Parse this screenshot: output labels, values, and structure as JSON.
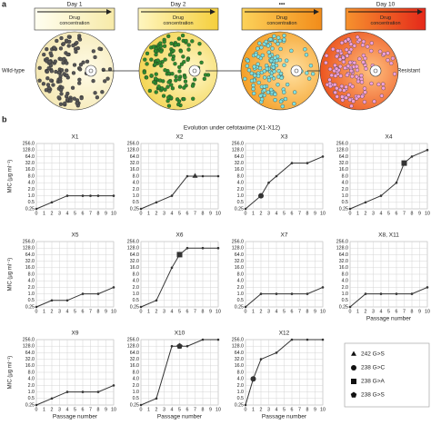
{
  "panel_a": {
    "label": "a",
    "steps": [
      {
        "day": "Day 1",
        "bar": "Drug concentration"
      },
      {
        "day": "Day 2",
        "bar": "Drug concentration"
      },
      {
        "day": "•••",
        "bar": "Drug concentration"
      },
      {
        "day": "Day 10",
        "bar": "Drug concentration"
      }
    ],
    "start_label": "Wild-type",
    "end_label": "Resistant"
  },
  "panel_b": {
    "label": "b",
    "title": "Evolution under cefotaxime (X1-X12)"
  },
  "legend": [
    {
      "shape": "triangle",
      "label": "242 G>S"
    },
    {
      "shape": "circle",
      "label": "238 G>C"
    },
    {
      "shape": "square",
      "label": "238 G>A"
    },
    {
      "shape": "pentagon",
      "label": "238 G>S"
    }
  ],
  "chart_data": [
    {
      "type": "line",
      "title": "X1",
      "ylabel": "MIC (μg ml⁻¹)",
      "x": [
        0,
        2,
        4,
        6,
        7,
        8,
        10
      ],
      "values": [
        0.25,
        0.5,
        1,
        1,
        1,
        1,
        1
      ],
      "xlim": [
        0,
        10
      ],
      "xticks": [
        0,
        1,
        2,
        3,
        4,
        5,
        6,
        7,
        8,
        9,
        10
      ],
      "ylim": [
        0.25,
        256
      ],
      "ylog": 2,
      "yticks": [
        0.25,
        0.5,
        {
          "value": 1,
          "label": "1.0"
        },
        {
          "value": 2,
          "label": "2.0"
        },
        {
          "value": 4,
          "label": "4.0"
        },
        {
          "value": 8,
          "label": "8.0"
        },
        {
          "value": 16,
          "label": "16.0"
        },
        {
          "value": 32,
          "label": "32.0"
        },
        {
          "value": 64,
          "label": "64.0"
        },
        {
          "value": 128,
          "label": "128.0"
        },
        {
          "value": 256,
          "label": "256.0"
        }
      ],
      "grid": true,
      "color": "#333333"
    },
    {
      "type": "line",
      "title": "X2",
      "x": [
        0,
        2,
        4,
        6,
        7,
        8,
        10
      ],
      "values": [
        0.25,
        0.5,
        1,
        8,
        8,
        8,
        8
      ],
      "markers": [
        null,
        null,
        null,
        null,
        "triangle",
        null,
        null
      ],
      "xlim": [
        0,
        10
      ],
      "xticks": [
        0,
        1,
        2,
        3,
        4,
        5,
        6,
        7,
        8,
        9,
        10
      ],
      "ylim": [
        0.25,
        256
      ],
      "ylog": 2,
      "yticks": [
        0.25,
        0.5,
        {
          "value": 1,
          "label": "1.0"
        },
        {
          "value": 2,
          "label": "2.0"
        },
        {
          "value": 4,
          "label": "4.0"
        },
        {
          "value": 8,
          "label": "8.0"
        },
        {
          "value": 16,
          "label": "16.0"
        },
        {
          "value": 32,
          "label": "32.0"
        },
        {
          "value": 64,
          "label": "64.0"
        },
        {
          "value": 128,
          "label": "128.0"
        },
        {
          "value": 256,
          "label": "256.0"
        }
      ],
      "grid": true,
      "color": "#333333"
    },
    {
      "type": "line",
      "title": "X3",
      "x": [
        0,
        2,
        3,
        4,
        6,
        8,
        10
      ],
      "values": [
        0.25,
        1,
        4,
        8,
        32,
        32,
        64
      ],
      "markers": [
        null,
        "circle",
        null,
        null,
        null,
        null,
        null
      ],
      "xlim": [
        0,
        10
      ],
      "xticks": [
        0,
        1,
        2,
        3,
        4,
        5,
        6,
        7,
        8,
        9,
        10
      ],
      "ylim": [
        0.25,
        256
      ],
      "ylog": 2,
      "yticks": [
        0.25,
        0.5,
        {
          "value": 1,
          "label": "1.0"
        },
        {
          "value": 2,
          "label": "2.0"
        },
        {
          "value": 4,
          "label": "4.0"
        },
        {
          "value": 8,
          "label": "8.0"
        },
        {
          "value": 16,
          "label": "16.0"
        },
        {
          "value": 32,
          "label": "32.0"
        },
        {
          "value": 64,
          "label": "64.0"
        },
        {
          "value": 128,
          "label": "128.0"
        },
        {
          "value": 256,
          "label": "256.0"
        }
      ],
      "grid": true,
      "color": "#333333"
    },
    {
      "type": "line",
      "title": "X4",
      "x": [
        0,
        2,
        4,
        6,
        7,
        8,
        10
      ],
      "values": [
        0.25,
        0.5,
        1,
        4,
        32,
        64,
        128
      ],
      "markers": [
        null,
        null,
        null,
        null,
        "square",
        null,
        null
      ],
      "xlim": [
        0,
        10
      ],
      "xticks": [
        0,
        1,
        2,
        3,
        4,
        5,
        6,
        7,
        8,
        9,
        10
      ],
      "ylim": [
        0.25,
        256
      ],
      "ylog": 2,
      "yticks": [
        0.25,
        0.5,
        {
          "value": 1,
          "label": "1.0"
        },
        {
          "value": 2,
          "label": "2.0"
        },
        {
          "value": 4,
          "label": "4.0"
        },
        {
          "value": 8,
          "label": "8.0"
        },
        {
          "value": 16,
          "label": "16.0"
        },
        {
          "value": 32,
          "label": "32.0"
        },
        {
          "value": 64,
          "label": "64.0"
        },
        {
          "value": 128,
          "label": "128.0"
        },
        {
          "value": 256,
          "label": "256.0"
        }
      ],
      "grid": true,
      "color": "#333333"
    },
    {
      "type": "line",
      "title": "X5",
      "ylabel": "MIC (μg ml⁻¹)",
      "x": [
        0,
        2,
        4,
        6,
        8,
        10
      ],
      "values": [
        0.25,
        0.5,
        0.5,
        1,
        1,
        2
      ],
      "xlim": [
        0,
        10
      ],
      "xticks": [
        0,
        1,
        2,
        3,
        4,
        5,
        6,
        7,
        8,
        9,
        10
      ],
      "ylim": [
        0.25,
        256
      ],
      "ylog": 2,
      "yticks": [
        0.25,
        0.5,
        {
          "value": 1,
          "label": "1.0"
        },
        {
          "value": 2,
          "label": "2.0"
        },
        {
          "value": 4,
          "label": "4.0"
        },
        {
          "value": 8,
          "label": "8.0"
        },
        {
          "value": 16,
          "label": "16.0"
        },
        {
          "value": 32,
          "label": "32.0"
        },
        {
          "value": 64,
          "label": "64.0"
        },
        {
          "value": 128,
          "label": "128.0"
        },
        {
          "value": 256,
          "label": "256.0"
        }
      ],
      "grid": true,
      "color": "#333333"
    },
    {
      "type": "line",
      "title": "X6",
      "x": [
        0,
        2,
        4,
        5,
        6,
        8,
        10
      ],
      "values": [
        0.25,
        0.5,
        16,
        64,
        128,
        128,
        128
      ],
      "markers": [
        null,
        null,
        null,
        "square",
        null,
        null,
        null
      ],
      "xlim": [
        0,
        10
      ],
      "xticks": [
        0,
        1,
        2,
        3,
        4,
        5,
        6,
        7,
        8,
        9,
        10
      ],
      "ylim": [
        0.25,
        256
      ],
      "ylog": 2,
      "yticks": [
        0.25,
        0.5,
        {
          "value": 1,
          "label": "1.0"
        },
        {
          "value": 2,
          "label": "2.0"
        },
        {
          "value": 4,
          "label": "4.0"
        },
        {
          "value": 8,
          "label": "8.0"
        },
        {
          "value": 16,
          "label": "16.0"
        },
        {
          "value": 32,
          "label": "32.0"
        },
        {
          "value": 64,
          "label": "64.0"
        },
        {
          "value": 128,
          "label": "128.0"
        },
        {
          "value": 256,
          "label": "256.0"
        }
      ],
      "grid": true,
      "color": "#333333"
    },
    {
      "type": "line",
      "title": "X7",
      "x": [
        0,
        2,
        4,
        6,
        8,
        10
      ],
      "values": [
        0.25,
        1,
        1,
        1,
        1,
        2
      ],
      "xlim": [
        0,
        10
      ],
      "xticks": [
        0,
        1,
        2,
        3,
        4,
        5,
        6,
        7,
        8,
        9,
        10
      ],
      "ylim": [
        0.25,
        256
      ],
      "ylog": 2,
      "yticks": [
        0.25,
        0.5,
        {
          "value": 1,
          "label": "1.0"
        },
        {
          "value": 2,
          "label": "2.0"
        },
        {
          "value": 4,
          "label": "4.0"
        },
        {
          "value": 8,
          "label": "8.0"
        },
        {
          "value": 16,
          "label": "16.0"
        },
        {
          "value": 32,
          "label": "32.0"
        },
        {
          "value": 64,
          "label": "64.0"
        },
        {
          "value": 128,
          "label": "128.0"
        },
        {
          "value": 256,
          "label": "256.0"
        }
      ],
      "grid": true,
      "color": "#333333"
    },
    {
      "type": "line",
      "title": "X8, X11",
      "xlabel": "Passage number",
      "x": [
        0,
        2,
        4,
        6,
        8,
        10
      ],
      "values": [
        0.25,
        1,
        1,
        1,
        1,
        2
      ],
      "xlim": [
        0,
        10
      ],
      "xticks": [
        0,
        1,
        2,
        3,
        4,
        5,
        6,
        7,
        8,
        9,
        10
      ],
      "ylim": [
        0.25,
        256
      ],
      "ylog": 2,
      "yticks": [
        0.25,
        0.5,
        {
          "value": 1,
          "label": "1.0"
        },
        {
          "value": 2,
          "label": "2.0"
        },
        {
          "value": 4,
          "label": "4.0"
        },
        {
          "value": 8,
          "label": "8.0"
        },
        {
          "value": 16,
          "label": "16.0"
        },
        {
          "value": 32,
          "label": "32.0"
        },
        {
          "value": 64,
          "label": "64.0"
        },
        {
          "value": 128,
          "label": "128.0"
        },
        {
          "value": 256,
          "label": "256.0"
        }
      ],
      "grid": true,
      "color": "#333333"
    },
    {
      "type": "line",
      "title": "X9",
      "ylabel": "MIC (μg ml⁻¹)",
      "xlabel": "Passage number",
      "x": [
        0,
        2,
        4,
        6,
        8,
        10
      ],
      "values": [
        0.25,
        0.5,
        1,
        1,
        1,
        2
      ],
      "xlim": [
        0,
        10
      ],
      "xticks": [
        0,
        1,
        2,
        3,
        4,
        5,
        6,
        7,
        8,
        9,
        10
      ],
      "ylim": [
        0.25,
        256
      ],
      "ylog": 2,
      "yticks": [
        0.25,
        0.5,
        {
          "value": 1,
          "label": "1.0"
        },
        {
          "value": 2,
          "label": "2.0"
        },
        {
          "value": 4,
          "label": "4.0"
        },
        {
          "value": 8,
          "label": "8.0"
        },
        {
          "value": 16,
          "label": "16.0"
        },
        {
          "value": 32,
          "label": "32.0"
        },
        {
          "value": 64,
          "label": "64.0"
        },
        {
          "value": 128,
          "label": "128.0"
        },
        {
          "value": 256,
          "label": "256.0"
        }
      ],
      "grid": true,
      "color": "#333333"
    },
    {
      "type": "line",
      "title": "X10",
      "xlabel": "Passage number",
      "x": [
        0,
        2,
        4,
        5,
        6,
        8,
        10
      ],
      "values": [
        0.25,
        0.5,
        128,
        128,
        128,
        256,
        256
      ],
      "markers": [
        null,
        null,
        null,
        "pentagon",
        null,
        null,
        null
      ],
      "xlim": [
        0,
        10
      ],
      "xticks": [
        0,
        1,
        2,
        3,
        4,
        5,
        6,
        7,
        8,
        9,
        10
      ],
      "ylim": [
        0.25,
        256
      ],
      "ylog": 2,
      "yticks": [
        0.25,
        0.5,
        {
          "value": 1,
          "label": "1.0"
        },
        {
          "value": 2,
          "label": "2.0"
        },
        {
          "value": 4,
          "label": "4.0"
        },
        {
          "value": 8,
          "label": "8.0"
        },
        {
          "value": 16,
          "label": "16.0"
        },
        {
          "value": 32,
          "label": "32.0"
        },
        {
          "value": 64,
          "label": "64.0"
        },
        {
          "value": 128,
          "label": "128.0"
        },
        {
          "value": 256,
          "label": "256.0"
        }
      ],
      "grid": true,
      "color": "#333333"
    },
    {
      "type": "line",
      "title": "X12",
      "xlabel": "Passage number",
      "x": [
        0,
        1,
        2,
        4,
        6,
        8,
        10
      ],
      "values": [
        0.25,
        4,
        32,
        64,
        256,
        256,
        256
      ],
      "markers": [
        null,
        "circle",
        null,
        null,
        null,
        null,
        null
      ],
      "xlim": [
        0,
        10
      ],
      "xticks": [
        0,
        1,
        2,
        3,
        4,
        5,
        6,
        7,
        8,
        9,
        10
      ],
      "ylim": [
        0.25,
        256
      ],
      "ylog": 2,
      "yticks": [
        0.25,
        0.5,
        {
          "value": 1,
          "label": "1.0"
        },
        {
          "value": 2,
          "label": "2.0"
        },
        {
          "value": 4,
          "label": "4.0"
        },
        {
          "value": 8,
          "label": "8.0"
        },
        {
          "value": 16,
          "label": "16.0"
        },
        {
          "value": 32,
          "label": "32.0"
        },
        {
          "value": 64,
          "label": "64.0"
        },
        {
          "value": 128,
          "label": "128.0"
        },
        {
          "value": 256,
          "label": "256.0"
        }
      ],
      "grid": true,
      "color": "#333333"
    }
  ]
}
